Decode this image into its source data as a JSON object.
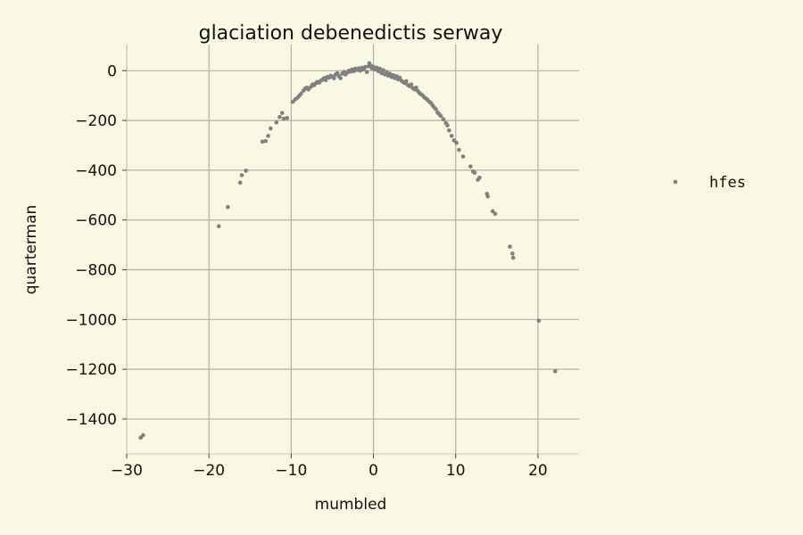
{
  "chart_data": {
    "type": "scatter",
    "title": "glaciation debenedictis serway",
    "xlabel": "mumbled",
    "ylabel": "quarterman",
    "xlim": [
      -30,
      25
    ],
    "ylim": [
      -1540,
      105
    ],
    "xticks": [
      -30,
      -20,
      -10,
      0,
      10,
      20
    ],
    "yticks": [
      0,
      -200,
      -400,
      -600,
      -800,
      -1000,
      -1200,
      -1400
    ],
    "xtick_labels": [
      "−30",
      "−20",
      "−10",
      "0",
      "10",
      "20"
    ],
    "ytick_labels": [
      "0",
      "−200",
      "−400",
      "−600",
      "−800",
      "−1000",
      "−1200",
      "−1400"
    ],
    "grid": true,
    "legend_position": "right",
    "series": [
      {
        "name": "hfes",
        "color": "#808080",
        "points": [
          [
            -28.3,
            -1475
          ],
          [
            -28.0,
            -1465
          ],
          [
            -18.8,
            -625
          ],
          [
            -17.7,
            -548
          ],
          [
            -16.2,
            -450
          ],
          [
            -16.0,
            -420
          ],
          [
            -15.5,
            -402
          ],
          [
            -13.5,
            -285
          ],
          [
            -13.1,
            -283
          ],
          [
            -12.8,
            -262
          ],
          [
            -12.5,
            -232
          ],
          [
            -11.8,
            -208
          ],
          [
            -11.4,
            -186
          ],
          [
            -11.1,
            -170
          ],
          [
            -10.9,
            -193
          ],
          [
            -10.5,
            -190
          ],
          [
            -9.8,
            -125
          ],
          [
            -9.5,
            -115
          ],
          [
            -9.2,
            -108
          ],
          [
            -9.0,
            -100
          ],
          [
            -8.8,
            -92
          ],
          [
            -8.5,
            -80
          ],
          [
            -8.3,
            -72
          ],
          [
            -8.1,
            -68
          ],
          [
            -7.9,
            -75
          ],
          [
            -7.6,
            -65
          ],
          [
            -7.4,
            -55
          ],
          [
            -7.2,
            -58
          ],
          [
            -7.0,
            -50
          ],
          [
            -6.8,
            -45
          ],
          [
            -6.6,
            -48
          ],
          [
            -6.4,
            -40
          ],
          [
            -6.2,
            -36
          ],
          [
            -6.0,
            -30
          ],
          [
            -5.8,
            -38
          ],
          [
            -5.6,
            -25
          ],
          [
            -5.4,
            -28
          ],
          [
            -5.2,
            -20
          ],
          [
            -5.0,
            -24
          ],
          [
            -4.8,
            -30
          ],
          [
            -4.6,
            -15
          ],
          [
            -4.4,
            -10
          ],
          [
            -4.2,
            -22
          ],
          [
            -4.0,
            -30
          ],
          [
            -3.8,
            -12
          ],
          [
            -3.6,
            -5
          ],
          [
            -3.4,
            -15
          ],
          [
            -3.2,
            -8
          ],
          [
            -3.0,
            0
          ],
          [
            -2.8,
            -4
          ],
          [
            -2.6,
            5
          ],
          [
            -2.4,
            -2
          ],
          [
            -2.2,
            8
          ],
          [
            -2.0,
            3
          ],
          [
            -1.8,
            10
          ],
          [
            -1.6,
            0
          ],
          [
            -1.4,
            12
          ],
          [
            -1.2,
            5
          ],
          [
            -1.0,
            15
          ],
          [
            -0.8,
            -5
          ],
          [
            -0.6,
            18
          ],
          [
            -0.5,
            30
          ],
          [
            -0.3,
            20
          ],
          [
            -0.2,
            10
          ],
          [
            0.0,
            15
          ],
          [
            0.2,
            5
          ],
          [
            0.4,
            12
          ],
          [
            0.6,
            -2
          ],
          [
            0.8,
            8
          ],
          [
            1.0,
            -10
          ],
          [
            1.2,
            2
          ],
          [
            1.4,
            -15
          ],
          [
            1.6,
            -5
          ],
          [
            1.8,
            -20
          ],
          [
            2.0,
            -12
          ],
          [
            2.2,
            -25
          ],
          [
            2.4,
            -18
          ],
          [
            2.6,
            -30
          ],
          [
            2.8,
            -22
          ],
          [
            3.0,
            -35
          ],
          [
            3.2,
            -28
          ],
          [
            3.4,
            -40
          ],
          [
            3.6,
            -45
          ],
          [
            3.8,
            -50
          ],
          [
            4.0,
            -42
          ],
          [
            4.2,
            -58
          ],
          [
            4.4,
            -62
          ],
          [
            4.6,
            -55
          ],
          [
            4.8,
            -70
          ],
          [
            5.0,
            -75
          ],
          [
            5.2,
            -68
          ],
          [
            5.4,
            -82
          ],
          [
            5.6,
            -90
          ],
          [
            5.8,
            -95
          ],
          [
            6.0,
            -100
          ],
          [
            6.2,
            -108
          ],
          [
            6.4,
            -112
          ],
          [
            6.6,
            -118
          ],
          [
            6.8,
            -125
          ],
          [
            7.0,
            -130
          ],
          [
            7.2,
            -140
          ],
          [
            7.4,
            -148
          ],
          [
            7.6,
            -155
          ],
          [
            7.8,
            -168
          ],
          [
            8.0,
            -175
          ],
          [
            8.2,
            -182
          ],
          [
            8.5,
            -195
          ],
          [
            8.8,
            -210
          ],
          [
            9.0,
            -220
          ],
          [
            9.2,
            -240
          ],
          [
            9.5,
            -262
          ],
          [
            9.8,
            -280
          ],
          [
            10.1,
            -290
          ],
          [
            10.4,
            -318
          ],
          [
            10.9,
            -345
          ],
          [
            11.8,
            -385
          ],
          [
            12.1,
            -405
          ],
          [
            12.3,
            -410
          ],
          [
            12.7,
            -438
          ],
          [
            12.9,
            -430
          ],
          [
            13.8,
            -495
          ],
          [
            13.9,
            -505
          ],
          [
            14.5,
            -565
          ],
          [
            14.8,
            -575
          ],
          [
            16.6,
            -707
          ],
          [
            16.9,
            -735
          ],
          [
            17.0,
            -752
          ],
          [
            20.1,
            -1005
          ],
          [
            22.1,
            -1208
          ]
        ]
      }
    ]
  }
}
